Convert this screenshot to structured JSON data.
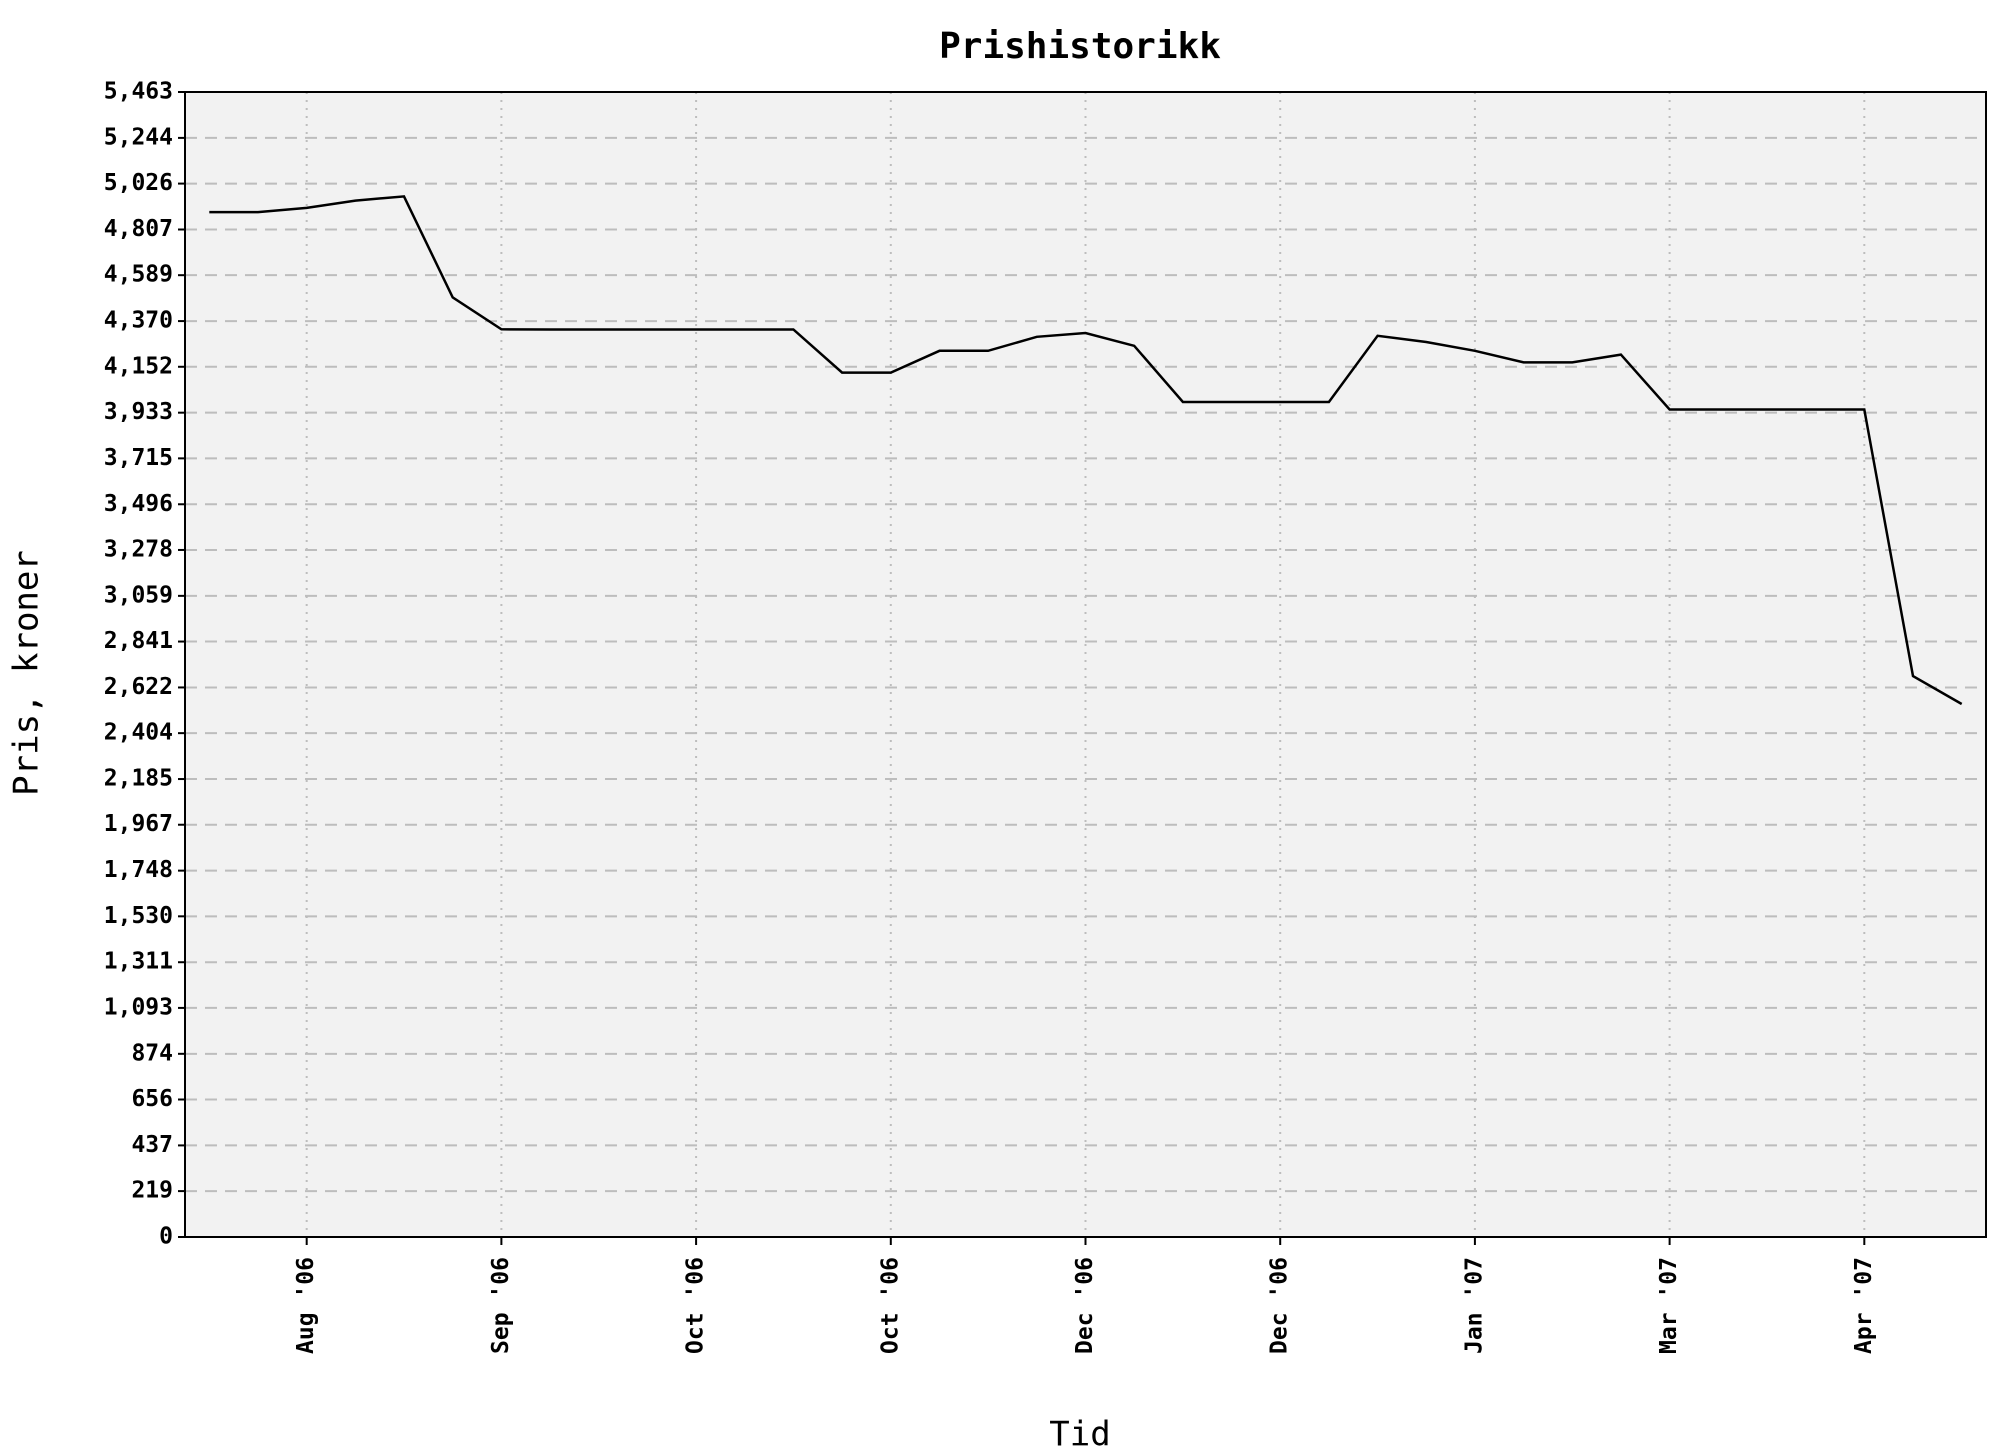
{
  "chart_data": {
    "type": "line",
    "title": "Prishistorikk",
    "x_label": "Tid",
    "y_label": "Pris, kroner",
    "color": "#000000",
    "grid": true,
    "categories": [
      null,
      null,
      "Aug '06",
      null,
      null,
      null,
      "Sep '06",
      null,
      null,
      null,
      "Oct '06",
      null,
      null,
      null,
      "Oct '06",
      null,
      null,
      null,
      "Dec '06",
      null,
      null,
      null,
      "Dec '06",
      null,
      null,
      null,
      "Jan '07",
      null,
      null,
      null,
      "Mar '07",
      null,
      null,
      null,
      "Apr '07",
      null,
      null
    ],
    "values": [
      4890,
      4890,
      4910,
      4945,
      4965,
      4483,
      4331,
      4330,
      4330,
      4330,
      4330,
      4330,
      4330,
      4124,
      4124,
      4228,
      4228,
      4295,
      4313,
      4252,
      3984,
      3984,
      3984,
      3984,
      4300,
      4270,
      4228,
      4173,
      4173,
      4210,
      3948,
      3948,
      3948,
      3948,
      3948,
      2676,
      2543
    ],
    "ylim": [
      0,
      5463
    ],
    "yticks": [
      0,
      219,
      437,
      656,
      874,
      {
        "value": 1093,
        "label": "1,093"
      },
      {
        "value": 1311,
        "label": "1,311"
      },
      {
        "value": 1530,
        "label": "1,530"
      },
      {
        "value": 1748,
        "label": "1,748"
      },
      {
        "value": 1967,
        "label": "1,967"
      },
      {
        "value": 2185,
        "label": "2,185"
      },
      {
        "value": 2404,
        "label": "2,404"
      },
      {
        "value": 2622,
        "label": "2,622"
      },
      {
        "value": 2841,
        "label": "2,841"
      },
      {
        "value": 3059,
        "label": "3,059"
      },
      {
        "value": 3278,
        "label": "3,278"
      },
      {
        "value": 3496,
        "label": "3,496"
      },
      {
        "value": 3715,
        "label": "3,715"
      },
      {
        "value": 3933,
        "label": "3,933"
      },
      {
        "value": 4152,
        "label": "4,152"
      },
      {
        "value": 4370,
        "label": "4,370"
      },
      {
        "value": 4589,
        "label": "4,589"
      },
      {
        "value": 4807,
        "label": "4,807"
      },
      {
        "value": 5026,
        "label": "5,026"
      },
      {
        "value": 5244,
        "label": "5,244"
      },
      {
        "value": 5463,
        "label": "5,463"
      }
    ]
  }
}
